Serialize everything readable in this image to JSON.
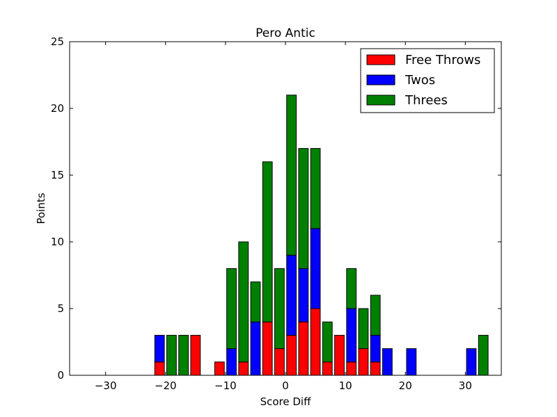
{
  "chart_data": {
    "type": "bar",
    "stacked": true,
    "title": "Pero Antic",
    "xlabel": "Score Diff",
    "ylabel": "Points",
    "xlim": [
      -36,
      36
    ],
    "ylim": [
      0,
      25
    ],
    "xticks": [
      -30,
      -20,
      -10,
      0,
      10,
      20,
      30
    ],
    "xtick_labels": [
      "−30",
      "−20",
      "−10",
      "0",
      "10",
      "20",
      "30"
    ],
    "yticks": [
      0,
      5,
      10,
      15,
      20,
      25
    ],
    "ytick_labels": [
      "0",
      "5",
      "10",
      "15",
      "20",
      "25"
    ],
    "legend_position": "top-right",
    "grid": false,
    "bar_width": 1.6,
    "x": [
      -35,
      -33,
      -31,
      -29,
      -27,
      -25,
      -23,
      -21,
      -19,
      -17,
      -15,
      -13,
      -11,
      -9,
      -7,
      -5,
      -3,
      -1,
      1,
      3,
      5,
      7,
      9,
      11,
      13,
      15,
      17,
      19,
      21,
      23,
      25,
      27,
      29,
      31,
      33,
      35
    ],
    "series": [
      {
        "name": "Free Throws",
        "color": "#ff0000",
        "values": [
          0,
          0,
          0,
          0,
          0,
          0,
          0,
          1,
          0,
          0,
          3,
          0,
          1,
          0,
          1,
          0,
          4,
          2,
          3,
          4,
          5,
          1,
          3,
          1,
          2,
          1,
          0,
          0,
          0,
          0,
          0,
          0,
          0,
          0,
          0,
          0
        ]
      },
      {
        "name": "Twos",
        "color": "#0000ff",
        "values": [
          0,
          0,
          0,
          0,
          0,
          0,
          0,
          2,
          0,
          0,
          0,
          0,
          0,
          2,
          0,
          4,
          0,
          0,
          6,
          4,
          6,
          0,
          0,
          4,
          0,
          2,
          2,
          0,
          2,
          0,
          0,
          0,
          0,
          2,
          0,
          0
        ]
      },
      {
        "name": "Threes",
        "color": "#008000",
        "values": [
          0,
          0,
          0,
          0,
          0,
          0,
          0,
          0,
          3,
          3,
          0,
          0,
          0,
          6,
          9,
          3,
          12,
          6,
          12,
          9,
          6,
          3,
          0,
          3,
          3,
          3,
          0,
          0,
          0,
          0,
          0,
          0,
          0,
          0,
          3,
          0
        ]
      }
    ]
  }
}
